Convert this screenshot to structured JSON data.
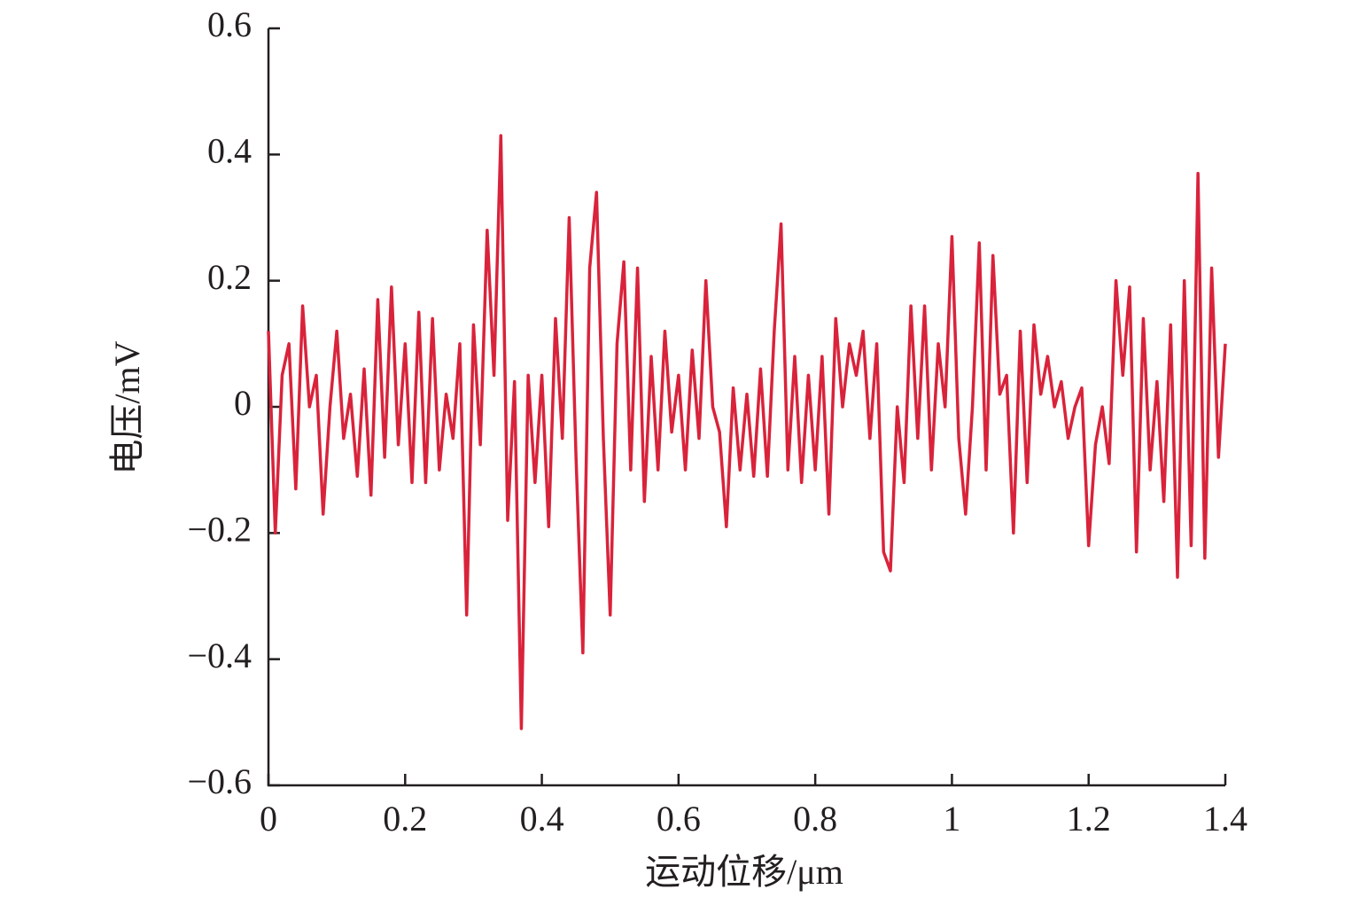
{
  "chart_data": {
    "type": "line",
    "x_label": "运动位移/μm",
    "y_label": "电压/mV",
    "x": [
      0,
      0.01,
      0.02,
      0.03,
      0.04,
      0.05,
      0.06,
      0.07,
      0.08,
      0.09,
      0.1,
      0.11,
      0.12,
      0.13,
      0.14,
      0.15,
      0.16,
      0.17,
      0.18,
      0.19,
      0.2,
      0.21,
      0.22,
      0.23,
      0.24,
      0.25,
      0.26,
      0.27,
      0.28,
      0.29,
      0.3,
      0.31,
      0.32,
      0.33,
      0.34,
      0.35,
      0.36,
      0.37,
      0.38,
      0.39,
      0.4,
      0.41,
      0.42,
      0.43,
      0.44,
      0.45,
      0.46,
      0.47,
      0.48,
      0.49,
      0.5,
      0.51,
      0.52,
      0.53,
      0.54,
      0.55,
      0.56,
      0.57,
      0.58,
      0.59,
      0.6,
      0.61,
      0.62,
      0.63,
      0.64,
      0.65,
      0.66,
      0.67,
      0.68,
      0.69,
      0.7,
      0.71,
      0.72,
      0.73,
      0.74,
      0.75,
      0.76,
      0.77,
      0.78,
      0.79,
      0.8,
      0.81,
      0.82,
      0.83,
      0.84,
      0.85,
      0.86,
      0.87,
      0.88,
      0.89,
      0.9,
      0.91,
      0.92,
      0.93,
      0.94,
      0.95,
      0.96,
      0.97,
      0.98,
      0.99,
      1,
      1.01,
      1.02,
      1.03,
      1.04,
      1.05,
      1.06,
      1.07,
      1.08,
      1.09,
      1.1,
      1.11,
      1.12,
      1.13,
      1.14,
      1.15,
      1.16,
      1.17,
      1.18,
      1.19,
      1.2,
      1.21,
      1.22,
      1.23,
      1.24,
      1.25,
      1.26,
      1.27,
      1.28,
      1.29,
      1.3,
      1.31,
      1.32,
      1.33,
      1.34,
      1.35,
      1.36,
      1.37,
      1.38,
      1.39,
      1.4
    ],
    "series": [
      {
        "color": "#d9233b",
        "values": [
          0.12,
          -0.2,
          0.05,
          0.1,
          -0.13,
          0.16,
          0,
          0.05,
          -0.17,
          0,
          0.12,
          -0.05,
          0.02,
          -0.11,
          0.06,
          -0.14,
          0.17,
          -0.08,
          0.19,
          -0.06,
          0.1,
          -0.12,
          0.15,
          -0.12,
          0.14,
          -0.1,
          0.02,
          -0.05,
          0.1,
          -0.33,
          0.13,
          -0.06,
          0.28,
          0.05,
          0.43,
          -0.18,
          0.04,
          -0.51,
          0.05,
          -0.12,
          0.05,
          -0.19,
          0.14,
          -0.05,
          0.3,
          -0.08,
          -0.39,
          0.22,
          0.34,
          -0.05,
          -0.33,
          0.1,
          0.23,
          -0.1,
          0.22,
          -0.15,
          0.08,
          -0.1,
          0.12,
          -0.04,
          0.05,
          -0.1,
          0.09,
          -0.05,
          0.2,
          0,
          -0.04,
          -0.19,
          0.03,
          -0.1,
          0.02,
          -0.11,
          0.06,
          -0.11,
          0.12,
          0.29,
          -0.1,
          0.08,
          -0.12,
          0.05,
          -0.1,
          0.08,
          -0.17,
          0.14,
          0,
          0.1,
          0.05,
          0.12,
          -0.05,
          0.1,
          -0.23,
          -0.26,
          0,
          -0.12,
          0.16,
          -0.05,
          0.16,
          -0.1,
          0.1,
          0,
          0.27,
          -0.05,
          -0.17,
          0,
          0.26,
          -0.1,
          0.24,
          0.02,
          0.05,
          -0.2,
          0.12,
          -0.12,
          0.13,
          0.02,
          0.08,
          0,
          0.04,
          -0.05,
          0,
          0.03,
          -0.22,
          -0.06,
          0,
          -0.09,
          0.2,
          0.05,
          0.19,
          -0.23,
          0.14,
          -0.1,
          0.04,
          -0.15,
          0.13,
          -0.27,
          0.2,
          -0.22,
          0.37,
          -0.24,
          0.22,
          -0.08,
          0.1
        ]
      }
    ],
    "xlim": [
      0,
      1.4
    ],
    "xticks": [
      0,
      0.2,
      0.4,
      0.6,
      0.8,
      1,
      1.2,
      1.4
    ],
    "ylim": [
      -0.6,
      0.6
    ],
    "yticks": [
      {
        "value": -0.6,
        "label": "−0.6"
      },
      {
        "value": -0.4,
        "label": "−0.4"
      },
      {
        "value": -0.2,
        "label": "−0.2"
      },
      0,
      0.2,
      0.4,
      0.6
    ],
    "grid": false
  }
}
